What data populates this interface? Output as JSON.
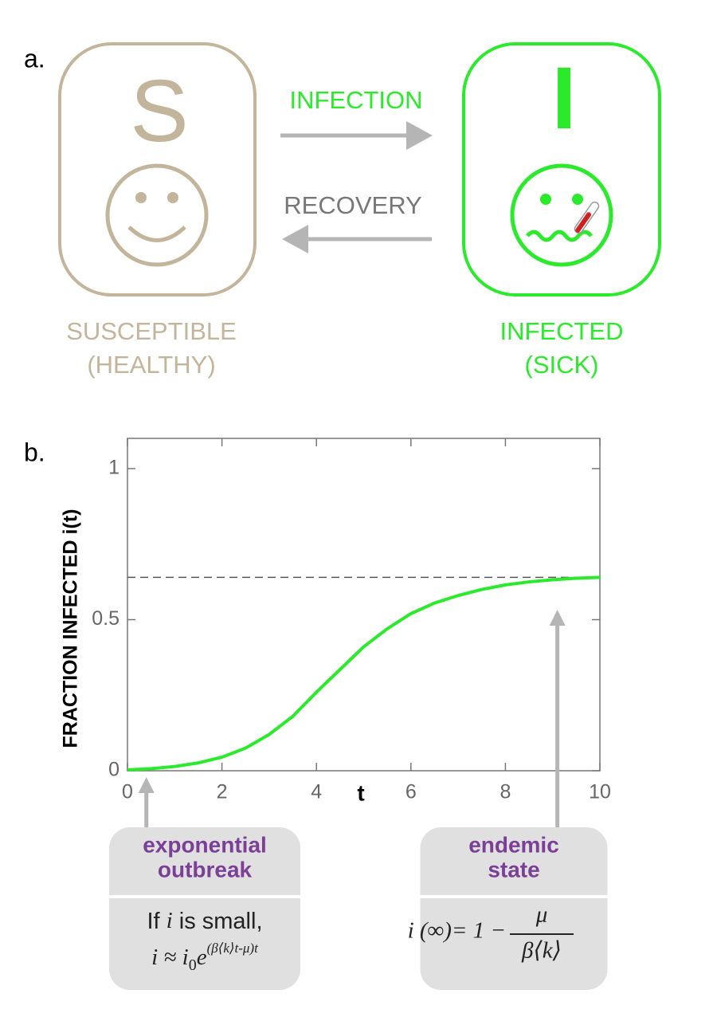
{
  "panel_a": {
    "label": "a.",
    "s_letter": "S",
    "i_letter": "I",
    "infection": "INFECTION",
    "recovery": "RECOVERY",
    "s_label": [
      "SUSCEPTIBLE",
      "(HEALTHY)"
    ],
    "i_label": [
      "INFECTED",
      "(SICK)"
    ]
  },
  "panel_b": {
    "label": "b."
  },
  "chart_data": {
    "type": "line",
    "x_label": "t",
    "y_label": "FRACTION INFECTED i(t)",
    "x": [
      0,
      0.5,
      1,
      1.5,
      2,
      2.5,
      3,
      3.5,
      4,
      4.5,
      5,
      5.5,
      6,
      6.5,
      7,
      7.5,
      8,
      8.5,
      9,
      9.5,
      10
    ],
    "series": [
      {
        "color": "#2bea2b",
        "values": [
          0.003,
          0.007,
          0.014,
          0.026,
          0.045,
          0.075,
          0.12,
          0.18,
          0.26,
          0.335,
          0.41,
          0.47,
          0.52,
          0.555,
          0.58,
          0.6,
          0.615,
          0.625,
          0.632,
          0.637,
          0.64
        ]
      }
    ],
    "hline": 0.64,
    "xlim": [
      0,
      10
    ],
    "ylim": [
      0,
      1.1
    ],
    "xticks": [
      0,
      2,
      4,
      6,
      8,
      10
    ],
    "yticks": [
      0,
      0.5,
      1
    ],
    "annotations": [
      {
        "x": 0.4,
        "title": [
          "exponential",
          "outbreak"
        ],
        "text": [
          "If ",
          "i",
          " is small,"
        ],
        "formula": [
          "i ≈ i",
          "0",
          "e",
          "(β⟨k⟩t-μ)t"
        ]
      },
      {
        "x": 9.1,
        "title": [
          "endemic",
          "state"
        ],
        "formula": [
          "i (∞)= 1 −",
          "μ",
          "β⟨k⟩"
        ]
      }
    ]
  }
}
